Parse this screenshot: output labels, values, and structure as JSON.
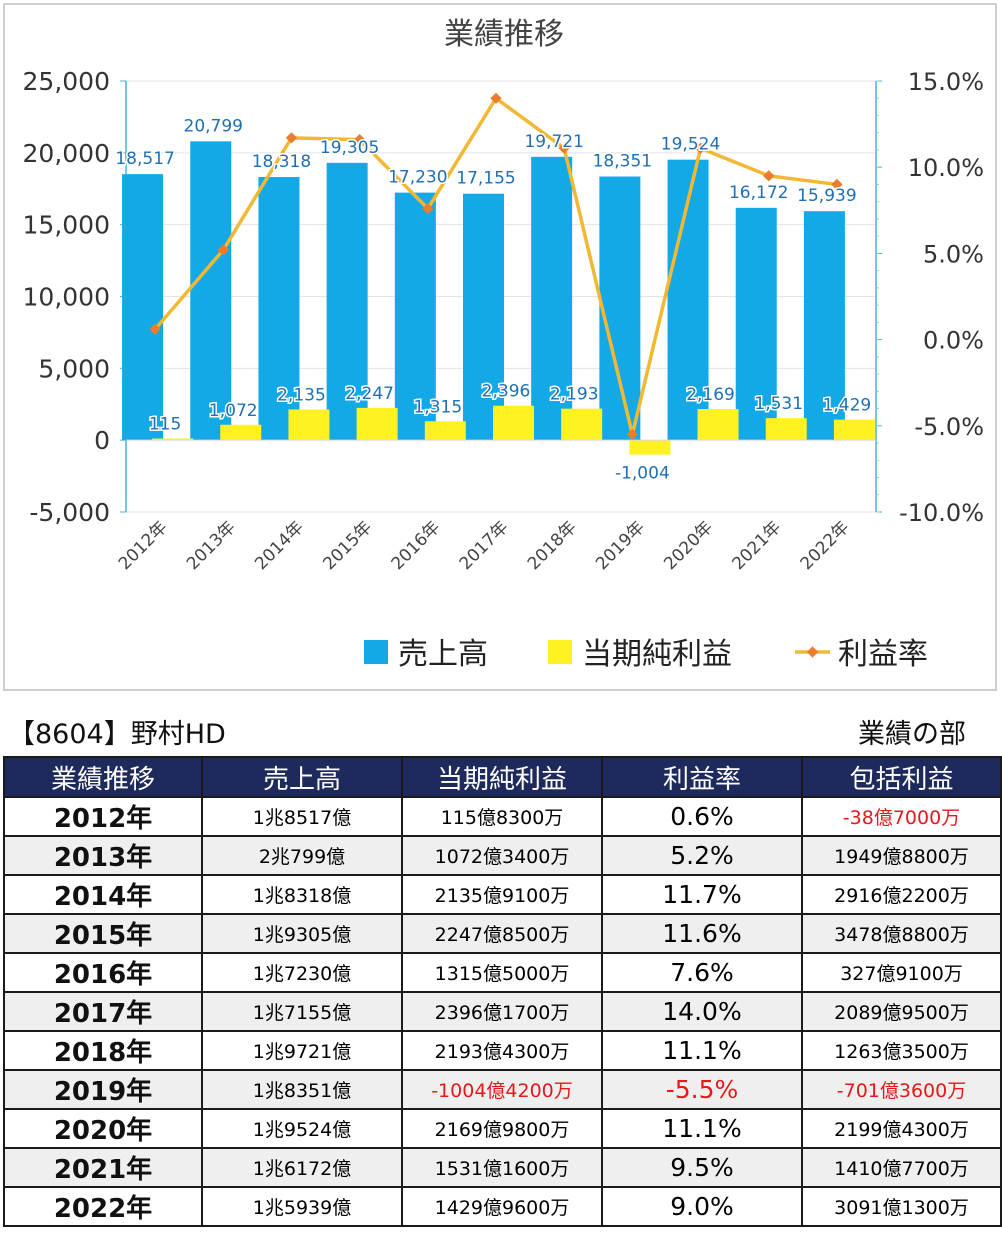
{
  "chart_data": {
    "type": "bar+line",
    "title": "業績推移",
    "categories": [
      "2012年",
      "2013年",
      "2014年",
      "2015年",
      "2016年",
      "2017年",
      "2018年",
      "2019年",
      "2020年",
      "2021年",
      "2022年"
    ],
    "series": [
      {
        "name": "売上高",
        "type": "bar",
        "axis": "left",
        "color": "#12a9e6",
        "values": [
          18517,
          20799,
          18318,
          19305,
          17230,
          17155,
          19721,
          18351,
          19524,
          16172,
          15939
        ],
        "labels": [
          "18,517",
          "20,799",
          "18,318",
          "19,305",
          "17,230",
          "17,155",
          "19,721",
          "18,351",
          "19,524",
          "16,172",
          "15,939"
        ]
      },
      {
        "name": "当期純利益",
        "type": "bar",
        "axis": "left",
        "color": "#fff122",
        "values": [
          115,
          1072,
          2135,
          2247,
          1315,
          2396,
          2193,
          -1004,
          2169,
          1531,
          1429
        ],
        "labels": [
          "115",
          "1,072",
          "2,135",
          "2,247",
          "1,315",
          "2,396",
          "2,193",
          "-1,004",
          "2,169",
          "1,531",
          "1,429"
        ]
      },
      {
        "name": "利益率",
        "type": "line",
        "axis": "right",
        "color": "#f2b733",
        "marker_color": "#ea7d2c",
        "values": [
          0.6,
          5.2,
          11.7,
          11.6,
          7.6,
          14.0,
          11.1,
          -5.5,
          11.1,
          9.5,
          9.0
        ]
      }
    ],
    "left_axis": {
      "min": -5000,
      "max": 25000,
      "step": 5000,
      "tick_labels": [
        "-5,000",
        "0",
        "5,000",
        "10,000",
        "15,000",
        "20,000",
        "25,000"
      ]
    },
    "right_axis": {
      "min": -10,
      "max": 15,
      "step": 5,
      "tick_labels": [
        "-10.0%",
        "-5.0%",
        "0.0%",
        "5.0%",
        "10.0%",
        "15.0%"
      ]
    },
    "grid": true,
    "legend_position": "bottom-right"
  },
  "header": {
    "ticker": "【8604】野村HD",
    "section": "業績の部"
  },
  "table": {
    "headers": [
      "業績推移",
      "売上高",
      "当期純利益",
      "利益率",
      "包括利益"
    ],
    "rows": [
      {
        "year": "2012年",
        "sales": "1兆8517億",
        "net": "115億8300万",
        "margin": "0.6%",
        "comp": "-38億7000万"
      },
      {
        "year": "2013年",
        "sales": "2兆799億",
        "net": "1072億3400万",
        "margin": "5.2%",
        "comp": "1949億8800万"
      },
      {
        "year": "2014年",
        "sales": "1兆8318億",
        "net": "2135億9100万",
        "margin": "11.7%",
        "comp": "2916億2200万"
      },
      {
        "year": "2015年",
        "sales": "1兆9305億",
        "net": "2247億8500万",
        "margin": "11.6%",
        "comp": "3478億8800万"
      },
      {
        "year": "2016年",
        "sales": "1兆7230億",
        "net": "1315億5000万",
        "margin": "7.6%",
        "comp": "327億9100万"
      },
      {
        "year": "2017年",
        "sales": "1兆7155億",
        "net": "2396億1700万",
        "margin": "14.0%",
        "comp": "2089億9500万"
      },
      {
        "year": "2018年",
        "sales": "1兆9721億",
        "net": "2193億4300万",
        "margin": "11.1%",
        "comp": "1263億3500万"
      },
      {
        "year": "2019年",
        "sales": "1兆8351億",
        "net": "-1004億4200万",
        "margin": "-5.5%",
        "comp": "-701億3600万"
      },
      {
        "year": "2020年",
        "sales": "1兆9524億",
        "net": "2169億9800万",
        "margin": "11.1%",
        "comp": "2199億4300万"
      },
      {
        "year": "2021年",
        "sales": "1兆6172億",
        "net": "1531億1600万",
        "margin": "9.5%",
        "comp": "1410億7700万"
      },
      {
        "year": "2022年",
        "sales": "1兆5939億",
        "net": "1429億9600万",
        "margin": "9.0%",
        "comp": "3091億1300万"
      }
    ],
    "negative_color": "#e61919"
  }
}
